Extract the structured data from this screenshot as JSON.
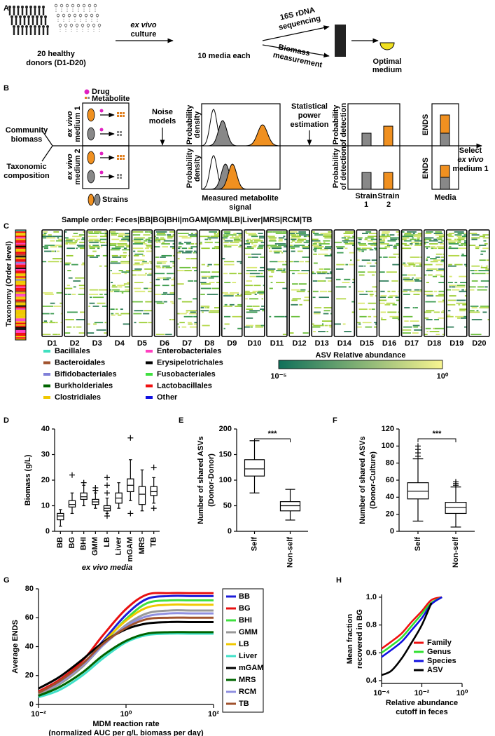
{
  "panel_a": {
    "label": "A",
    "donors": [
      "20 healthy",
      "donors (D1-D20)"
    ],
    "culture": [
      "ex vivo",
      "culture"
    ],
    "media": "10 media each",
    "sequencing": [
      "16S rDNA",
      "sequencing"
    ],
    "biomass": [
      "Biomass",
      "measurement"
    ],
    "optimal": [
      "Optimal",
      "medium"
    ]
  },
  "panel_b": {
    "label": "B",
    "drug": "Drug",
    "metabolite": "Metabolite",
    "community": [
      "Community",
      "biomass"
    ],
    "taxonomic": [
      "Taxonomic",
      "composition"
    ],
    "medium_1": [
      "ex vivo",
      "medium 1"
    ],
    "medium_2": [
      "ex vivo",
      "medium 2"
    ],
    "strains": "Strains",
    "noise": [
      "Noise",
      "models"
    ],
    "density_1": [
      "Probability",
      "density"
    ],
    "density_2": [
      "Probability",
      "density"
    ],
    "signal": [
      "Measured metabolite",
      "signal"
    ],
    "power": [
      "Statistical",
      "power",
      "estimation"
    ],
    "detection_1": [
      "Probability",
      "of detection"
    ],
    "detection_2": [
      "Probability",
      "of detection"
    ],
    "strain_1": [
      "Strain",
      "1"
    ],
    "strain_2": [
      "Strain",
      "2"
    ],
    "ends_1": "ENDS",
    "ends_2": "ENDS",
    "media": "Media",
    "select": [
      "Select",
      "ex vivo",
      "medium 1"
    ]
  },
  "panel_c": {
    "label": "C",
    "sample_order": "Sample order: Feces|BB|BG|BHI|mGAM|GMM|LB|Liver|MRS|RCM|TB",
    "taxonomy_axis": "Taxonomy  (Order level)",
    "donors": [
      "D1",
      "D2",
      "D3",
      "D4",
      "D5",
      "D6",
      "D7",
      "D8",
      "D9",
      "D10",
      "D11",
      "D12",
      "D13",
      "D14",
      "D15",
      "D16",
      "D17",
      "D18",
      "D19",
      "D20"
    ],
    "legend": [
      {
        "name": "Bacillales",
        "color": "#40e0c0"
      },
      {
        "name": "Bacteroidales",
        "color": "#a0522d"
      },
      {
        "name": "Bifidobacteriales",
        "color": "#8080d8"
      },
      {
        "name": "Burkholderiales",
        "color": "#006400"
      },
      {
        "name": "Clostridiales",
        "color": "#f0c800"
      },
      {
        "name": "Enterobacteriales",
        "color": "#ff40c0"
      },
      {
        "name": "Erysipelotrichales",
        "color": "#000000"
      },
      {
        "name": "Fusobacteriales",
        "color": "#40e040"
      },
      {
        "name": "Lactobacillales",
        "color": "#f01010"
      },
      {
        "name": "Other",
        "color": "#1010e0"
      }
    ],
    "colorbar": {
      "title": "ASV Relative abundance",
      "min_label": "10⁻⁵",
      "max_label": "10⁰",
      "colors": [
        "#10705a",
        "#f8f490"
      ]
    }
  },
  "chart_data": [
    {
      "type": "box",
      "label": "D",
      "ylabel": "Biomass (g/L)",
      "xlabel": "ex vivo media",
      "categories": [
        "BB",
        "BG",
        "BHI",
        "GMM",
        "LB",
        "Liver",
        "mGAM",
        "MRS",
        "TB"
      ],
      "boxes": [
        [
          2,
          4.5,
          6,
          7,
          8.5
        ],
        [
          7,
          9.5,
          10.5,
          12,
          15
        ],
        [
          10,
          12.5,
          13.5,
          15,
          18
        ],
        [
          9,
          10.5,
          11.5,
          12.5,
          15
        ],
        [
          7,
          8,
          9,
          10,
          13
        ],
        [
          9,
          11,
          13,
          15,
          19
        ],
        [
          12,
          15.5,
          18,
          20.5,
          28
        ],
        [
          8,
          10.5,
          14.5,
          17.5,
          24
        ],
        [
          11,
          14,
          15.5,
          17.5,
          21
        ]
      ],
      "outliers": [
        [],
        [
          22
        ],
        [
          19
        ],
        [
          16,
          17
        ],
        [
          6,
          15,
          18,
          21
        ],
        [],
        [
          7,
          36.5
        ],
        [],
        [
          9,
          25
        ]
      ],
      "ylim": [
        0,
        40
      ],
      "yticks": [
        0,
        10,
        20,
        30,
        40
      ]
    },
    {
      "type": "box",
      "label": "E",
      "ylabel": [
        "Number of shared ASVs",
        "(Donor-Donor)"
      ],
      "categories": [
        "Self",
        "Non-self"
      ],
      "boxes": [
        [
          75,
          108,
          122,
          140,
          177
        ],
        [
          22,
          40,
          50,
          58,
          82
        ]
      ],
      "outliers": [
        [],
        []
      ],
      "annotation": "***",
      "ylim": [
        0,
        200
      ],
      "yticks": [
        0,
        50,
        100,
        150,
        200
      ]
    },
    {
      "type": "box",
      "label": "F",
      "ylabel": [
        "Number of shared ASVs",
        "(Donor-Culture)"
      ],
      "categories": [
        "Self",
        "Non-self"
      ],
      "boxes": [
        [
          12,
          38,
          47,
          57,
          85
        ],
        [
          5,
          21,
          28,
          34,
          52
        ]
      ],
      "outliers": [
        [
          88,
          92,
          96,
          100
        ],
        [
          54,
          56,
          58
        ]
      ],
      "annotation": "***",
      "ylim": [
        0,
        120
      ],
      "yticks": [
        0,
        20,
        40,
        60,
        80,
        100,
        120
      ]
    },
    {
      "type": "line",
      "label": "G",
      "ylabel": "Average ENDS",
      "xlabel": [
        "MDM reaction rate",
        "(normalized AUC per g/L biomass per day)"
      ],
      "xlog": true,
      "legend": "right",
      "x": [
        0.01,
        0.03,
        0.1,
        0.3,
        1,
        3,
        10,
        30,
        100
      ],
      "series": [
        {
          "name": "BB",
          "color": "#1c1cd8",
          "values": [
            8,
            15,
            27,
            44,
            62,
            73,
            75,
            75,
            75
          ]
        },
        {
          "name": "BG",
          "color": "#e81010",
          "values": [
            9,
            17,
            30,
            48,
            66,
            76,
            77,
            77,
            77
          ]
        },
        {
          "name": "BHI",
          "color": "#40e040",
          "values": [
            7,
            14,
            26,
            42,
            59,
            70,
            72,
            72,
            72
          ]
        },
        {
          "name": "GMM",
          "color": "#999999",
          "values": [
            7,
            14,
            26,
            41,
            55,
            63,
            65,
            65,
            65
          ]
        },
        {
          "name": "LB",
          "color": "#f0c800",
          "values": [
            8,
            15,
            27,
            43,
            58,
            67,
            69,
            69,
            69
          ]
        },
        {
          "name": "Liver",
          "color": "#40e0c8",
          "values": [
            5,
            10,
            20,
            32,
            43,
            48,
            49,
            49,
            49
          ]
        },
        {
          "name": "mGAM",
          "color": "#000000",
          "values": [
            11,
            19,
            31,
            43,
            52,
            56,
            57,
            57,
            57
          ]
        },
        {
          "name": "MRS",
          "color": "#006400",
          "values": [
            6,
            12,
            22,
            34,
            44,
            49,
            50,
            50,
            50
          ]
        },
        {
          "name": "RCM",
          "color": "#9090e0",
          "values": [
            8,
            15,
            27,
            41,
            54,
            61,
            63,
            63,
            63
          ]
        },
        {
          "name": "TB",
          "color": "#a0522d",
          "values": [
            8,
            16,
            28,
            42,
            53,
            59,
            60,
            60,
            60
          ]
        }
      ],
      "xlim": [
        0.01,
        100
      ],
      "xticks": [
        {
          "value": 0.01,
          "label": "10⁻²"
        },
        {
          "value": 1,
          "label": "10⁰"
        },
        {
          "value": 100,
          "label": "10²"
        }
      ],
      "ylim": [
        0,
        80
      ],
      "yticks": [
        0,
        20,
        40,
        60,
        80
      ]
    },
    {
      "type": "line",
      "label": "H",
      "ylabel": [
        "Mean fraction",
        "recovered in BG"
      ],
      "xlabel": [
        "Relative abundance",
        "cutoff in feces"
      ],
      "xlog": true,
      "legend": "lower right",
      "x": [
        0.0001,
        0.0003,
        0.001,
        0.003,
        0.01,
        0.03,
        0.1
      ],
      "series": [
        {
          "name": "Family",
          "color": "#f01010",
          "values": [
            0.63,
            0.68,
            0.74,
            0.82,
            0.9,
            0.98,
            1.0
          ]
        },
        {
          "name": "Genus",
          "color": "#30e030",
          "values": [
            0.6,
            0.65,
            0.71,
            0.79,
            0.88,
            0.96,
            1.0
          ]
        },
        {
          "name": "Species",
          "color": "#1010e0",
          "values": [
            0.57,
            0.62,
            0.68,
            0.76,
            0.85,
            0.95,
            1.0
          ]
        },
        {
          "name": "ASV",
          "color": "#000000",
          "values": [
            0.44,
            0.47,
            0.56,
            0.67,
            0.8,
            0.96,
            null
          ]
        }
      ],
      "xlim": [
        0.0001,
        1
      ],
      "xticks": [
        {
          "value": 0.0001,
          "label": "10⁻⁴"
        },
        {
          "value": 0.01,
          "label": "10⁻²"
        },
        {
          "value": 1,
          "label": "10⁰"
        }
      ],
      "ylim": [
        0.38,
        1.02
      ],
      "yticks": [
        0.4,
        0.6,
        0.8,
        {
          "value": 1,
          "label": "1.0"
        }
      ]
    }
  ]
}
